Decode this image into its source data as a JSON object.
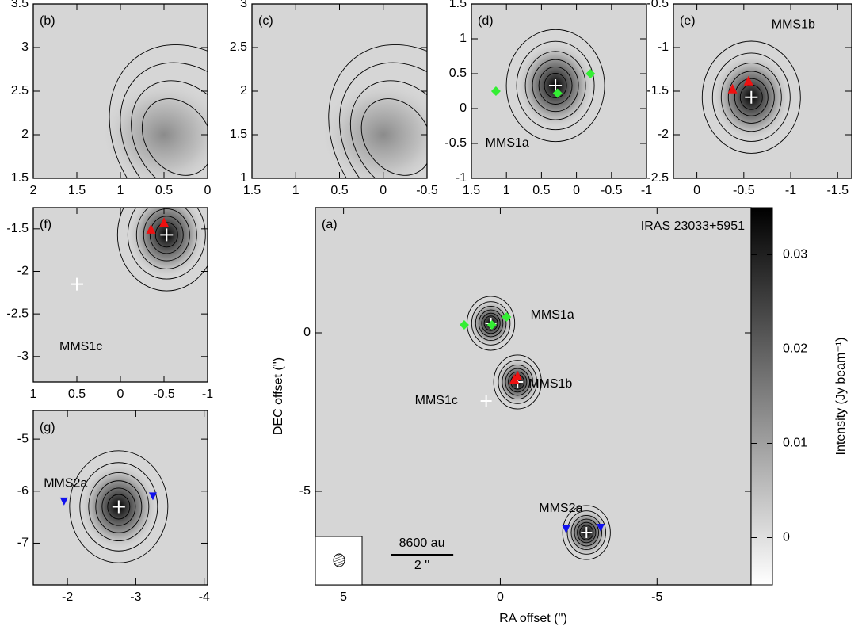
{
  "chart_data": [
    {
      "type": "image",
      "label": "(a)",
      "title": "IRAS 23033+5951",
      "x_label": "RA offset ('')",
      "y_label": "DEC offset ('')",
      "xlim": [
        5.9,
        -8
      ],
      "ylim": [
        -7.95,
        3.95
      ],
      "xticks": [
        5,
        0,
        -5
      ],
      "yticks": [
        -5,
        0
      ],
      "markers": [
        {
          "name": "MMS1a",
          "x": 0.3,
          "y": 0.3,
          "shape": "plus",
          "color": "#ffffff"
        },
        {
          "name": "MMS1b",
          "x": -0.55,
          "y": -1.55,
          "shape": "plus",
          "color": "#ffffff"
        },
        {
          "name": "MMS1c",
          "x": 0.45,
          "y": -2.15,
          "shape": "plus",
          "color": "#ffffff"
        },
        {
          "name": "MMS2a",
          "x": -2.75,
          "y": -6.3,
          "shape": "plus",
          "color": "#ffffff"
        },
        {
          "x": 1.15,
          "y": 0.25,
          "shape": "diamond",
          "color": "#33ee33"
        },
        {
          "x": -0.2,
          "y": 0.5,
          "shape": "diamond",
          "color": "#33ee33"
        },
        {
          "x": 0.27,
          "y": 0.25,
          "shape": "diamond",
          "color": "#33ee33"
        },
        {
          "x": -0.45,
          "y": -1.45,
          "shape": "triangle",
          "color": "#ee1111"
        },
        {
          "x": -0.55,
          "y": -1.35,
          "shape": "triangle",
          "color": "#ee1111"
        },
        {
          "x": -2.1,
          "y": -6.2,
          "shape": "triangle-down",
          "color": "#1111ee"
        },
        {
          "x": -3.2,
          "y": -6.15,
          "shape": "triangle-down",
          "color": "#1111ee"
        }
      ],
      "scale_bar": {
        "label": "8600 au",
        "sublabel": "2 ''",
        "length": 2
      },
      "colorbar": {
        "label": "Intensity (Jy beam⁻¹)",
        "lim": [
          -0.005,
          0.035
        ],
        "ticks": [
          0,
          0.01,
          0.02,
          0.03
        ]
      }
    },
    {
      "type": "image",
      "label": "(b)",
      "xlim": [
        2,
        0
      ],
      "ylim": [
        1.5,
        3.5
      ],
      "xticks": [
        2,
        1.5,
        1,
        0.5,
        0
      ],
      "yticks": [
        1.5,
        2,
        2.5,
        3,
        3.5
      ],
      "markers": []
    },
    {
      "type": "image",
      "label": "(c)",
      "xlim": [
        1.5,
        -0.5
      ],
      "ylim": [
        1,
        3
      ],
      "xticks": [
        1.5,
        1,
        0.5,
        0,
        -0.5
      ],
      "yticks": [
        1,
        1.5,
        2,
        2.5,
        3
      ],
      "markers": []
    },
    {
      "type": "image",
      "label": "(d)",
      "annotation": "MMS1a",
      "xlim": [
        1.5,
        -1
      ],
      "ylim": [
        -1,
        1.5
      ],
      "xticks": [
        1.5,
        1,
        0.5,
        0,
        -0.5,
        -1
      ],
      "yticks": [
        -1,
        -0.5,
        0,
        0.5,
        1,
        1.5
      ],
      "markers": [
        {
          "x": 0.3,
          "y": 0.33,
          "shape": "plus",
          "color": "#ffffff"
        },
        {
          "x": 1.15,
          "y": 0.25,
          "shape": "diamond",
          "color": "#33ee33"
        },
        {
          "x": -0.2,
          "y": 0.5,
          "shape": "diamond",
          "color": "#33ee33"
        },
        {
          "x": 0.27,
          "y": 0.22,
          "shape": "diamond",
          "color": "#33ee33"
        }
      ]
    },
    {
      "type": "image",
      "label": "(e)",
      "annotation": "MMS1b",
      "xlim": [
        0.25,
        -1.65
      ],
      "ylim": [
        -2.5,
        -0.5
      ],
      "xticks": [
        0,
        -0.5,
        -1,
        -1.5
      ],
      "yticks": [
        -2.5,
        -2,
        -1.5,
        -1,
        -0.5
      ],
      "markers": [
        {
          "x": -0.58,
          "y": -1.57,
          "shape": "plus",
          "color": "#ffffff"
        },
        {
          "x": -0.38,
          "y": -1.47,
          "shape": "triangle",
          "color": "#ee1111"
        },
        {
          "x": -0.55,
          "y": -1.38,
          "shape": "triangle",
          "color": "#ee1111"
        }
      ]
    },
    {
      "type": "image",
      "label": "(f)",
      "annotation": "MMS1c",
      "xlim": [
        1,
        -1
      ],
      "ylim": [
        -3.3,
        -1.25
      ],
      "xticks": [
        1,
        0.5,
        0,
        -0.5,
        -1
      ],
      "yticks": [
        -3,
        -2.5,
        -2,
        -1.5
      ],
      "markers": [
        {
          "x": -0.53,
          "y": -1.57,
          "shape": "plus",
          "color": "#ffffff"
        },
        {
          "x": 0.5,
          "y": -2.15,
          "shape": "plus",
          "color": "#ffffff"
        },
        {
          "x": -0.35,
          "y": -1.5,
          "shape": "triangle",
          "color": "#ee1111"
        },
        {
          "x": -0.5,
          "y": -1.42,
          "shape": "triangle",
          "color": "#ee1111"
        }
      ]
    },
    {
      "type": "image",
      "label": "(g)",
      "annotation": "MMS2a",
      "xlim": [
        -1.5,
        -4.05
      ],
      "ylim": [
        -7.8,
        -4.45
      ],
      "xticks": [
        -2,
        -3,
        -4
      ],
      "yticks": [
        -7,
        -6,
        -5
      ],
      "markers": [
        {
          "x": -2.75,
          "y": -6.3,
          "shape": "plus",
          "color": "#ffffff"
        },
        {
          "x": -1.95,
          "y": -6.2,
          "shape": "triangle-down",
          "color": "#1111ee"
        },
        {
          "x": -3.25,
          "y": -6.1,
          "shape": "triangle-down",
          "color": "#1111ee"
        }
      ]
    }
  ]
}
